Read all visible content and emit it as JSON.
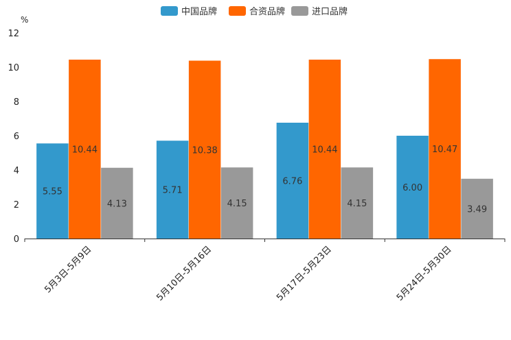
{
  "chart_data": {
    "type": "bar",
    "ylabel": "%",
    "ylim": [
      0,
      12
    ],
    "yticks": [
      0,
      2,
      4,
      6,
      8,
      10,
      12
    ],
    "ytick_labels": [
      "0",
      "2",
      "4",
      "6",
      "8",
      "10",
      "12"
    ],
    "categories": [
      "5月3日-5月9日",
      "5月10日-5月16日",
      "5月17日-5月23日",
      "5月24日-5月30日"
    ],
    "series": [
      {
        "name": "中国品牌",
        "color": "#3399cc",
        "values": [
          5.55,
          5.71,
          6.76,
          6.0
        ],
        "labels": [
          "5.55",
          "5.71",
          "6.76",
          "6.00"
        ]
      },
      {
        "name": "合资品牌",
        "color": "#ff6600",
        "values": [
          10.44,
          10.38,
          10.44,
          10.47
        ],
        "labels": [
          "10.44",
          "10.38",
          "10.44",
          "10.47"
        ]
      },
      {
        "name": "进口品牌",
        "color": "#999999",
        "values": [
          4.13,
          4.15,
          4.15,
          3.49
        ],
        "labels": [
          "4.13",
          "4.15",
          "4.15",
          "3.49"
        ]
      }
    ],
    "legend_position": "top-center",
    "grid": false
  }
}
